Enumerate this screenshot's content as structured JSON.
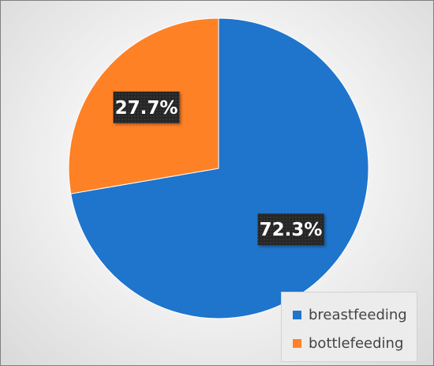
{
  "chart_data": {
    "type": "pie",
    "title": "",
    "slices": [
      {
        "name": "breastfeeding",
        "value": 72.3,
        "label": "72.3%",
        "color": "#1f74cc"
      },
      {
        "name": "bottlefeeding",
        "value": 27.7,
        "label": "27.7%",
        "color": "#ff8126"
      }
    ],
    "start_angle_deg": 0,
    "direction": "clockwise",
    "legend_position": "bottom-right",
    "data_label_style": "dark-box"
  }
}
